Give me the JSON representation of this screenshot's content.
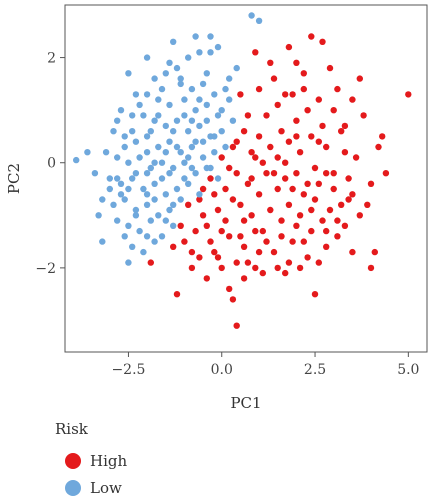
{
  "chart_data": {
    "type": "scatter",
    "xlabel": "PC1",
    "ylabel": "PC2",
    "xlim": [
      -4.2,
      5.5
    ],
    "ylim": [
      -3.6,
      3.0
    ],
    "xticks": [
      -2.5,
      0.0,
      2.5,
      5.0
    ],
    "xtick_labels": [
      "−2.5",
      "0.0",
      "2.5",
      "5.0"
    ],
    "yticks": [
      -2,
      0,
      2
    ],
    "ytick_labels": [
      "−2",
      "0",
      "2"
    ],
    "grid": false,
    "legend": {
      "title": "Risk",
      "position": "bottom-left"
    },
    "series": [
      {
        "name": "High",
        "color": "#e41a1c",
        "points": [
          [
            0.9,
            2.1
          ],
          [
            1.4,
            1.6
          ],
          [
            1.8,
            2.2
          ],
          [
            2.0,
            1.9
          ],
          [
            2.2,
            1.7
          ],
          [
            2.4,
            2.4
          ],
          [
            2.7,
            2.3
          ],
          [
            3.1,
            1.4
          ],
          [
            3.7,
            1.6
          ],
          [
            5.0,
            1.3
          ],
          [
            0.5,
            1.3
          ],
          [
            0.6,
            0.6
          ],
          [
            0.8,
            0.2
          ],
          [
            1.0,
            1.4
          ],
          [
            1.2,
            0.9
          ],
          [
            1.3,
            0.3
          ],
          [
            1.5,
            1.1
          ],
          [
            1.6,
            0.6
          ],
          [
            1.7,
            0.0
          ],
          [
            1.9,
            1.3
          ],
          [
            2.0,
            0.8
          ],
          [
            2.1,
            0.2
          ],
          [
            2.3,
            1.0
          ],
          [
            2.4,
            0.5
          ],
          [
            2.5,
            -0.1
          ],
          [
            2.6,
            1.2
          ],
          [
            2.7,
            0.7
          ],
          [
            2.8,
            0.3
          ],
          [
            2.9,
            1.8
          ],
          [
            3.0,
            1.0
          ],
          [
            3.2,
            0.6
          ],
          [
            3.3,
            0.2
          ],
          [
            3.4,
            -0.3
          ],
          [
            3.5,
            1.2
          ],
          [
            3.6,
            0.1
          ],
          [
            3.8,
            0.9
          ],
          [
            4.0,
            -0.4
          ],
          [
            4.2,
            0.3
          ],
          [
            4.4,
            -0.2
          ],
          [
            4.3,
            0.5
          ],
          [
            -0.6,
            -0.7
          ],
          [
            -0.4,
            -1.2
          ],
          [
            -0.3,
            -0.3
          ],
          [
            -0.1,
            -0.9
          ],
          [
            0.0,
            0.1
          ],
          [
            0.1,
            -0.5
          ],
          [
            0.2,
            -1.4
          ],
          [
            0.3,
            0.3
          ],
          [
            0.4,
            -0.2
          ],
          [
            0.5,
            -0.8
          ],
          [
            0.6,
            -1.6
          ],
          [
            0.7,
            -0.4
          ],
          [
            0.8,
            -1.0
          ],
          [
            0.9,
            0.1
          ],
          [
            1.0,
            -0.6
          ],
          [
            1.1,
            -1.3
          ],
          [
            1.2,
            -0.2
          ],
          [
            1.3,
            -0.9
          ],
          [
            1.4,
            -1.7
          ],
          [
            1.5,
            -0.5
          ],
          [
            1.6,
            -1.1
          ],
          [
            1.7,
            -0.3
          ],
          [
            1.8,
            -0.8
          ],
          [
            1.9,
            -1.5
          ],
          [
            2.0,
            -0.2
          ],
          [
            2.1,
            -1.0
          ],
          [
            2.2,
            -0.6
          ],
          [
            2.3,
            -1.8
          ],
          [
            2.4,
            -1.3
          ],
          [
            2.5,
            -0.7
          ],
          [
            2.6,
            -0.4
          ],
          [
            2.7,
            -1.1
          ],
          [
            2.8,
            -1.6
          ],
          [
            2.9,
            -0.9
          ],
          [
            3.0,
            -0.5
          ],
          [
            3.1,
            -1.4
          ],
          [
            3.2,
            -0.8
          ],
          [
            3.3,
            -1.2
          ],
          [
            3.5,
            -0.6
          ],
          [
            3.7,
            -1.0
          ],
          [
            -1.0,
            -1.5
          ],
          [
            -0.8,
            -2.0
          ],
          [
            -0.6,
            -1.8
          ],
          [
            -0.4,
            -2.2
          ],
          [
            -0.2,
            -1.7
          ],
          [
            0.0,
            -2.0
          ],
          [
            0.2,
            -2.4
          ],
          [
            0.4,
            -1.9
          ],
          [
            0.6,
            -2.2
          ],
          [
            0.9,
            -2.0
          ],
          [
            1.1,
            -2.1
          ],
          [
            1.5,
            -2.0
          ],
          [
            1.8,
            -1.9
          ],
          [
            2.1,
            -2.0
          ],
          [
            2.6,
            -1.9
          ],
          [
            -1.9,
            -1.9
          ],
          [
            -1.2,
            -2.5
          ],
          [
            0.3,
            -2.6
          ],
          [
            0.4,
            -3.1
          ],
          [
            2.5,
            -2.5
          ],
          [
            -1.3,
            -1.6
          ],
          [
            -1.1,
            -1.2
          ],
          [
            -0.9,
            -0.8
          ],
          [
            -0.7,
            -1.3
          ],
          [
            -0.5,
            -0.5
          ],
          [
            -0.3,
            -1.5
          ],
          [
            -0.2,
            -0.6
          ],
          [
            0.1,
            -1.1
          ],
          [
            0.3,
            -0.7
          ],
          [
            0.5,
            -1.4
          ],
          [
            0.7,
            -1.9
          ],
          [
            1.0,
            -1.7
          ],
          [
            1.2,
            -1.5
          ],
          [
            1.6,
            -1.4
          ],
          [
            2.2,
            -1.5
          ],
          [
            2.8,
            -1.3
          ],
          [
            3.0,
            -0.2
          ],
          [
            3.4,
            -0.7
          ],
          [
            3.9,
            -0.8
          ],
          [
            4.1,
            -1.7
          ],
          [
            4.0,
            -2.0
          ],
          [
            3.5,
            -1.7
          ],
          [
            1.3,
            1.9
          ],
          [
            1.7,
            1.3
          ],
          [
            2.2,
            1.4
          ],
          [
            0.7,
            0.9
          ],
          [
            1.0,
            0.5
          ],
          [
            1.5,
            0.1
          ],
          [
            2.0,
            0.5
          ],
          [
            2.6,
            0.4
          ],
          [
            0.2,
            -0.1
          ],
          [
            0.4,
            0.4
          ],
          [
            0.8,
            -0.3
          ],
          [
            1.1,
            0.0
          ],
          [
            1.4,
            -0.2
          ],
          [
            1.8,
            0.4
          ],
          [
            2.3,
            -0.4
          ],
          [
            2.8,
            -0.2
          ],
          [
            3.3,
            0.7
          ],
          [
            0.9,
            -1.3
          ],
          [
            1.9,
            -0.5
          ],
          [
            2.4,
            -0.9
          ],
          [
            -0.5,
            -1.0
          ],
          [
            -0.1,
            -1.8
          ],
          [
            0.6,
            -1.1
          ],
          [
            1.7,
            -2.1
          ],
          [
            2.0,
            -1.2
          ],
          [
            3.1,
            -1.1
          ],
          [
            -0.8,
            -1.7
          ],
          [
            0.0,
            -1.3
          ]
        ]
      },
      {
        "name": "Low",
        "color": "#6fa8dc",
        "points": [
          [
            0.8,
            2.8
          ],
          [
            1.0,
            2.7
          ],
          [
            -0.9,
            2.0
          ],
          [
            -0.6,
            2.1
          ],
          [
            -0.3,
            2.1
          ],
          [
            -1.2,
            1.8
          ],
          [
            -0.4,
            1.7
          ],
          [
            0.2,
            1.6
          ],
          [
            -2.5,
            1.7
          ],
          [
            -1.8,
            1.6
          ],
          [
            -1.5,
            1.7
          ],
          [
            -1.1,
            1.5
          ],
          [
            -0.8,
            1.4
          ],
          [
            -0.5,
            1.5
          ],
          [
            -0.2,
            1.3
          ],
          [
            0.1,
            1.4
          ],
          [
            -2.3,
            1.3
          ],
          [
            -2.0,
            1.3
          ],
          [
            -1.7,
            1.2
          ],
          [
            -1.4,
            1.1
          ],
          [
            -1.0,
            1.2
          ],
          [
            -0.7,
            1.0
          ],
          [
            -0.4,
            1.1
          ],
          [
            -0.1,
            0.9
          ],
          [
            0.2,
            1.2
          ],
          [
            -2.7,
            1.0
          ],
          [
            -2.4,
            0.9
          ],
          [
            -2.1,
            0.9
          ],
          [
            -1.8,
            0.8
          ],
          [
            -1.5,
            0.7
          ],
          [
            -1.2,
            0.8
          ],
          [
            -0.9,
            0.6
          ],
          [
            -0.6,
            0.7
          ],
          [
            -0.3,
            0.5
          ],
          [
            0.0,
            0.6
          ],
          [
            0.3,
            0.8
          ],
          [
            -2.9,
            0.6
          ],
          [
            -2.6,
            0.5
          ],
          [
            -2.3,
            0.4
          ],
          [
            -2.0,
            0.5
          ],
          [
            -1.7,
            0.3
          ],
          [
            -1.4,
            0.4
          ],
          [
            -1.1,
            0.2
          ],
          [
            -0.8,
            0.3
          ],
          [
            -0.5,
            0.1
          ],
          [
            -0.2,
            0.2
          ],
          [
            0.1,
            0.3
          ],
          [
            -3.1,
            0.2
          ],
          [
            -2.8,
            0.1
          ],
          [
            -2.5,
            0.0
          ],
          [
            -2.2,
            0.1
          ],
          [
            -1.9,
            -0.1
          ],
          [
            -1.6,
            0.0
          ],
          [
            -1.3,
            -0.1
          ],
          [
            -1.0,
            0.0
          ],
          [
            -0.7,
            -0.2
          ],
          [
            -0.4,
            -0.1
          ],
          [
            -0.1,
            -0.3
          ],
          [
            -3.4,
            -0.2
          ],
          [
            -3.0,
            -0.3
          ],
          [
            -2.7,
            -0.4
          ],
          [
            -2.4,
            -0.3
          ],
          [
            -2.1,
            -0.5
          ],
          [
            -1.8,
            -0.4
          ],
          [
            -1.5,
            -0.6
          ],
          [
            -1.2,
            -0.5
          ],
          [
            -0.9,
            -0.4
          ],
          [
            -0.6,
            -0.6
          ],
          [
            -3.2,
            -0.7
          ],
          [
            -2.9,
            -0.8
          ],
          [
            -2.6,
            -0.7
          ],
          [
            -2.3,
            -0.9
          ],
          [
            -2.0,
            -0.8
          ],
          [
            -1.7,
            -1.0
          ],
          [
            -1.4,
            -0.9
          ],
          [
            -1.1,
            -0.7
          ],
          [
            -2.8,
            -1.1
          ],
          [
            -2.5,
            -1.2
          ],
          [
            -2.2,
            -1.3
          ],
          [
            -1.9,
            -1.1
          ],
          [
            -1.6,
            -1.4
          ],
          [
            -1.3,
            -1.2
          ],
          [
            -2.4,
            -1.6
          ],
          [
            -2.1,
            -1.7
          ],
          [
            -3.9,
            0.05
          ],
          [
            -3.2,
            -1.5
          ],
          [
            -2.5,
            -1.9
          ],
          [
            -1.8,
            -1.5
          ],
          [
            -0.3,
            2.4
          ],
          [
            -0.1,
            2.2
          ],
          [
            -2.0,
            2.0
          ],
          [
            -1.3,
            2.3
          ],
          [
            -0.7,
            2.4
          ],
          [
            0.4,
            1.8
          ],
          [
            -1.6,
            1.4
          ],
          [
            -2.2,
            1.1
          ],
          [
            -1.0,
            0.9
          ],
          [
            -0.4,
            0.8
          ],
          [
            -1.9,
            0.6
          ],
          [
            -1.3,
            0.6
          ],
          [
            -0.7,
            0.4
          ],
          [
            -0.2,
            0.5
          ],
          [
            -2.6,
            0.3
          ],
          [
            -2.0,
            0.2
          ],
          [
            -1.5,
            0.2
          ],
          [
            -0.9,
            0.1
          ],
          [
            -0.3,
            -0.1
          ],
          [
            -3.6,
            0.2
          ],
          [
            -2.3,
            -0.2
          ],
          [
            -1.6,
            -0.3
          ],
          [
            -1.0,
            -0.3
          ],
          [
            -2.7,
            -0.6
          ],
          [
            -2.0,
            -0.6
          ],
          [
            -1.3,
            -0.8
          ],
          [
            -2.3,
            -1.0
          ],
          [
            -1.5,
            -1.1
          ],
          [
            -2.8,
            -0.3
          ],
          [
            -1.1,
            1.6
          ],
          [
            -0.6,
            1.2
          ],
          [
            0.0,
            1.0
          ],
          [
            -1.4,
            1.9
          ],
          [
            -2.8,
            0.8
          ],
          [
            -1.7,
            0.9
          ],
          [
            -0.8,
            0.8
          ],
          [
            -2.4,
            0.6
          ],
          [
            -1.2,
            0.3
          ],
          [
            -0.5,
            0.4
          ],
          [
            -1.8,
            0.0
          ],
          [
            -2.0,
            -0.2
          ],
          [
            -1.4,
            -0.2
          ],
          [
            -0.8,
            -0.1
          ],
          [
            -3.0,
            -0.5
          ],
          [
            -2.5,
            -0.5
          ],
          [
            -1.8,
            -0.7
          ],
          [
            -2.6,
            -1.4
          ],
          [
            -2.0,
            -1.4
          ],
          [
            -3.3,
            -1.0
          ]
        ]
      }
    ]
  }
}
